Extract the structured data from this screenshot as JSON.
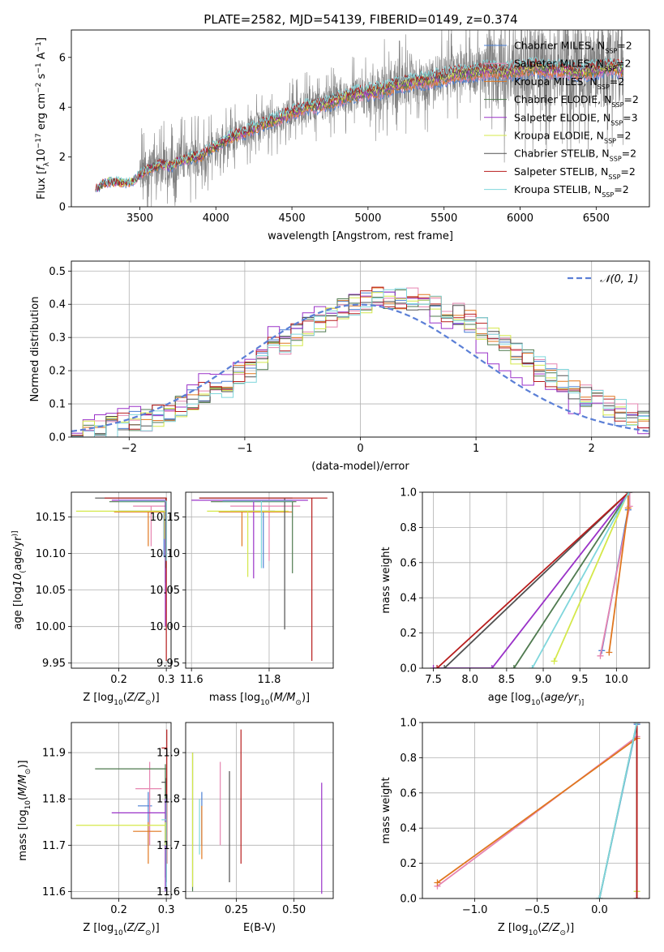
{
  "figure": {
    "title": "PLATE=2582, MJD=54139, FIBERID=0149, z=0.374"
  },
  "colors": {
    "data": "#808080",
    "gaussian": "#5b7fd6",
    "models": [
      "#4a7fd4",
      "#e684b0",
      "#e0771f",
      "#4f7a4f",
      "#9a32c8",
      "#d4e84a",
      "#505050",
      "#b81d1d",
      "#7fd6dc"
    ]
  },
  "legend_models": [
    {
      "name": "Chabrier MILES",
      "nssp": "2",
      "color": "#4a7fd4"
    },
    {
      "name": "Salpeter MILES",
      "nssp": "2",
      "color": "#e684b0"
    },
    {
      "name": "Kroupa MILES",
      "nssp": "2",
      "color": "#e0771f"
    },
    {
      "name": "Chabrier ELODIE",
      "nssp": "2",
      "color": "#4f7a4f"
    },
    {
      "name": "Salpeter ELODIE",
      "nssp": "3",
      "color": "#9a32c8"
    },
    {
      "name": "Kroupa ELODIE",
      "nssp": "2",
      "color": "#d4e84a"
    },
    {
      "name": "Chabrier STELIB",
      "nssp": "2",
      "color": "#505050"
    },
    {
      "name": "Salpeter STELIB",
      "nssp": "2",
      "color": "#b81d1d"
    },
    {
      "name": "Kroupa STELIB",
      "nssp": "2",
      "color": "#7fd6dc"
    }
  ],
  "chart_data": [
    {
      "id": "spectrum",
      "type": "line",
      "xlabel": "wavelength [Angstrom, rest frame]",
      "ylabel_parts": [
        "Flux [",
        "f",
        "λ",
        "10",
        "−17",
        " erg cm",
        "−2",
        " s",
        "−1",
        " A",
        "−1",
        "]"
      ],
      "xlim": [
        3050,
        6850
      ],
      "ylim": [
        0,
        7.1
      ],
      "xticks": [
        3500,
        4000,
        4500,
        5000,
        5500,
        6000,
        6500
      ],
      "yticks": [
        0,
        2,
        4,
        6
      ],
      "model_curve": {
        "x": [
          3210,
          3250,
          3300,
          3350,
          3400,
          3450,
          3500,
          3550,
          3600,
          3650,
          3700,
          3750,
          3800,
          3850,
          3900,
          3950,
          4000,
          4100,
          4200,
          4300,
          4400,
          4500,
          4600,
          4700,
          4800,
          4900,
          5000,
          5100,
          5200,
          5300,
          5400,
          5500,
          5600,
          5700,
          5800,
          5900,
          6000,
          6100,
          6200,
          6300,
          6400,
          6500,
          6600,
          6680
        ],
        "y": [
          0.7,
          0.9,
          1.0,
          1.0,
          0.95,
          1.0,
          1.3,
          1.5,
          1.6,
          1.7,
          1.6,
          1.8,
          1.9,
          2.0,
          2.0,
          2.3,
          2.4,
          2.8,
          3.0,
          3.3,
          3.5,
          3.8,
          4.0,
          4.1,
          4.3,
          4.5,
          4.6,
          4.7,
          4.9,
          5.0,
          5.1,
          5.2,
          5.35,
          5.4,
          5.5,
          5.4,
          5.5,
          5.6,
          5.5,
          5.5,
          5.4,
          5.5,
          5.6,
          5.5
        ]
      },
      "data_noise": {
        "seed": 7,
        "segments": [
          {
            "from": 3210,
            "to": 3500,
            "amp": 0.06
          },
          {
            "from": 3500,
            "to": 3950,
            "amp": 1.3
          },
          {
            "from": 3950,
            "to": 4500,
            "amp": 1.0
          },
          {
            "from": 4500,
            "to": 5000,
            "amp": 1.1
          },
          {
            "from": 5000,
            "to": 5800,
            "amp": 1.5
          },
          {
            "from": 5800,
            "to": 6680,
            "amp": 2.6
          }
        ]
      },
      "legend_position": "upper right"
    },
    {
      "id": "residuals",
      "type": "histogram",
      "xlabel": "(data-model)/error",
      "ylabel": "Normed distribution",
      "xlim": [
        -2.5,
        2.5
      ],
      "ylim": [
        0,
        0.53
      ],
      "xticks": [
        -2,
        -1,
        0,
        1,
        2
      ],
      "yticks": [
        0.0,
        0.1,
        0.2,
        0.3,
        0.4,
        0.5
      ],
      "bin_width": 0.1,
      "bin_start": -2.5,
      "reference_curve": {
        "name": "N(0,1)",
        "label": "𝒩(0, 1)",
        "mean": 0,
        "sigma": 1
      },
      "model_peak_shift": [
        0.25,
        0.35,
        0.3,
        0.3,
        0.1,
        0.3,
        0.3,
        0.25,
        0.35
      ],
      "legend_position": "upper right"
    },
    {
      "id": "age_vs_Z",
      "type": "scatter",
      "xlabel_parts": [
        "Z [log",
        "10",
        "(",
        "Z/Z",
        "⊙",
        ")]"
      ],
      "ylabel_parts": [
        "age  [log",
        "10",
        "(",
        "age/yr",
        ")]"
      ],
      "xlim": [
        0.1,
        0.31
      ],
      "ylim": [
        9.943,
        10.184
      ],
      "xticks": [
        0.2,
        0.3
      ],
      "yticks": [
        9.95,
        10.0,
        10.05,
        10.1,
        10.15
      ],
      "points": [
        {
          "x": 0.295,
          "y": 10.158,
          "xerr": [
            0.2,
            0.3
          ],
          "yerr": [
            10.095,
            10.158
          ],
          "color": "#4a7fd4"
        },
        {
          "x": 0.268,
          "y": 10.165,
          "xerr": [
            0.23,
            0.3
          ],
          "yerr": [
            10.11,
            10.165
          ],
          "color": "#e684b0"
        },
        {
          "x": 0.262,
          "y": 10.157,
          "xerr": [
            0.19,
            0.3
          ],
          "yerr": [
            10.11,
            10.157
          ],
          "color": "#e0771f"
        },
        {
          "x": 0.298,
          "y": 10.171,
          "xerr": [
            0.18,
            0.3
          ],
          "yerr": [
            10.06,
            10.171
          ],
          "color": "#4f7a4f"
        },
        {
          "x": 0.298,
          "y": 10.173,
          "xerr": [
            0.185,
            0.3
          ],
          "yerr": [
            10.0,
            10.173
          ],
          "color": "#9a32c8"
        },
        {
          "x": 0.296,
          "y": 10.158,
          "xerr": [
            0.11,
            0.3
          ],
          "yerr": [
            10.12,
            10.158
          ],
          "color": "#d4e84a"
        },
        {
          "x": 0.299,
          "y": 10.176,
          "xerr": [
            0.15,
            0.3
          ],
          "yerr": [
            10.08,
            10.176
          ],
          "color": "#505050"
        },
        {
          "x": 0.3,
          "y": 10.176,
          "xerr": [
            0.17,
            0.301
          ],
          "yerr": [
            9.953,
            10.176
          ],
          "color": "#b81d1d"
        },
        {
          "x": 0.3,
          "y": 10.172,
          "xerr": [
            0.2,
            0.3
          ],
          "yerr": [
            10.09,
            10.172
          ],
          "color": "#7fd6dc"
        }
      ]
    },
    {
      "id": "age_vs_mass",
      "type": "scatter",
      "xlabel_parts": [
        "mass [log",
        "10",
        "(",
        "M/M",
        "⊙",
        ")]"
      ],
      "xlim": [
        11.585,
        11.965
      ],
      "ylim": [
        9.943,
        10.184
      ],
      "xticks": [
        11.6,
        11.8
      ],
      "yticks": [
        9.95,
        10.0,
        10.05,
        10.1,
        10.15
      ],
      "points": [
        {
          "x": 11.785,
          "y": 10.158,
          "xerr": [
            11.7,
            11.815
          ],
          "yerr": [
            10.08,
            10.158
          ],
          "color": "#4a7fd4"
        },
        {
          "x": 11.8,
          "y": 10.165,
          "xerr": [
            11.7,
            11.88
          ],
          "yerr": [
            10.09,
            10.165
          ],
          "color": "#e684b0"
        },
        {
          "x": 11.73,
          "y": 10.157,
          "xerr": [
            11.67,
            11.86
          ],
          "yerr": [
            10.11,
            10.157
          ],
          "color": "#e0771f"
        },
        {
          "x": 11.86,
          "y": 10.171,
          "xerr": [
            11.65,
            11.87
          ],
          "yerr": [
            10.073,
            10.171
          ],
          "color": "#4f7a4f"
        },
        {
          "x": 11.76,
          "y": 10.173,
          "xerr": [
            11.6,
            11.9
          ],
          "yerr": [
            10.066,
            10.173
          ],
          "color": "#9a32c8"
        },
        {
          "x": 11.745,
          "y": 10.158,
          "xerr": [
            11.64,
            11.85
          ],
          "yerr": [
            10.068,
            10.158
          ],
          "color": "#d4e84a"
        },
        {
          "x": 11.84,
          "y": 10.176,
          "xerr": [
            11.62,
            11.86
          ],
          "yerr": [
            9.996,
            10.176
          ],
          "color": "#505050"
        },
        {
          "x": 11.91,
          "y": 10.176,
          "xerr": [
            11.62,
            11.95
          ],
          "yerr": [
            9.953,
            10.176
          ],
          "color": "#b81d1d"
        },
        {
          "x": 11.78,
          "y": 10.172,
          "xerr": [
            11.68,
            11.86
          ],
          "yerr": [
            10.08,
            10.172
          ],
          "color": "#7fd6dc"
        }
      ]
    },
    {
      "id": "cum_age",
      "type": "line",
      "xlabel_parts": [
        "age  [log",
        "10",
        "(",
        "age/yr",
        ")]"
      ],
      "ylabel": "mass weight",
      "xlim": [
        7.35,
        10.45
      ],
      "ylim": [
        0,
        1.0
      ],
      "xticks": [
        7.5,
        8.0,
        8.5,
        9.0,
        9.5,
        10.0
      ],
      "yticks": [
        0.0,
        0.2,
        0.4,
        0.6,
        0.8,
        1.0
      ],
      "series": [
        {
          "x": [
            9.8,
            10.16,
            10.16
          ],
          "y": [
            0.1,
            0.9,
            1.0
          ],
          "color": "#4a7fd4"
        },
        {
          "x": [
            9.78,
            10.18,
            10.18
          ],
          "y": [
            0.07,
            0.92,
            1.0
          ],
          "color": "#e684b0"
        },
        {
          "x": [
            9.9,
            10.16,
            10.16
          ],
          "y": [
            0.09,
            0.91,
            1.0
          ],
          "color": "#e0771f"
        },
        {
          "x": [
            8.6,
            10.17
          ],
          "y": [
            0.0,
            1.0
          ],
          "color": "#4f7a4f"
        },
        {
          "x": [
            7.5,
            8.3,
            10.17
          ],
          "y": [
            0.0,
            0.0,
            1.0
          ],
          "color": "#9a32c8"
        },
        {
          "x": [
            9.15,
            10.16
          ],
          "y": [
            0.04,
            1.0
          ],
          "color": "#d4e84a"
        },
        {
          "x": [
            7.65,
            10.17
          ],
          "y": [
            0.0,
            1.0
          ],
          "color": "#505050"
        },
        {
          "x": [
            7.55,
            10.17
          ],
          "y": [
            0.0,
            1.0
          ],
          "color": "#b81d1d"
        },
        {
          "x": [
            8.85,
            10.17
          ],
          "y": [
            0.0,
            1.0
          ],
          "color": "#7fd6dc"
        }
      ]
    },
    {
      "id": "mass_vs_Z",
      "type": "scatter",
      "xlabel_parts": [
        "Z [log",
        "10",
        "(",
        "Z/Z",
        "⊙",
        ")]"
      ],
      "ylabel_parts": [
        "mass [log",
        "10",
        "(",
        "M/M",
        "⊙",
        ")]"
      ],
      "xlim": [
        0.1,
        0.31
      ],
      "ylim": [
        11.585,
        11.965
      ],
      "xticks": [
        0.2,
        0.3
      ],
      "yticks": [
        11.6,
        11.7,
        11.8,
        11.9
      ],
      "points": [
        {
          "x": 0.262,
          "y": 11.785,
          "xerr": [
            0.24,
            0.27
          ],
          "yerr": [
            11.7,
            11.815
          ],
          "color": "#4a7fd4"
        },
        {
          "x": 0.265,
          "y": 11.822,
          "xerr": [
            0.235,
            0.29
          ],
          "yerr": [
            11.7,
            11.88
          ],
          "color": "#e684b0"
        },
        {
          "x": 0.262,
          "y": 11.73,
          "xerr": [
            0.23,
            0.29
          ],
          "yerr": [
            11.66,
            11.75
          ],
          "color": "#e0771f"
        },
        {
          "x": 0.298,
          "y": 11.865,
          "xerr": [
            0.15,
            0.3
          ],
          "yerr": [
            11.63,
            11.875
          ],
          "color": "#4f7a4f"
        },
        {
          "x": 0.298,
          "y": 11.77,
          "xerr": [
            0.185,
            0.3
          ],
          "yerr": [
            11.6,
            11.8
          ],
          "color": "#9a32c8"
        },
        {
          "x": 0.298,
          "y": 11.743,
          "xerr": [
            0.11,
            0.3
          ],
          "yerr": [
            11.7,
            11.75
          ],
          "color": "#d4e84a"
        },
        {
          "x": 0.3,
          "y": 11.836,
          "xerr": [
            0.29,
            0.3
          ],
          "yerr": [
            11.62,
            11.845
          ],
          "color": "#505050"
        },
        {
          "x": 0.301,
          "y": 11.91,
          "xerr": [
            0.29,
            0.301
          ],
          "yerr": [
            11.66,
            11.95
          ],
          "color": "#b81d1d"
        },
        {
          "x": 0.3,
          "y": 11.755,
          "xerr": [
            0.29,
            0.3
          ],
          "yerr": [
            11.6,
            11.8
          ],
          "color": "#7fd6dc"
        }
      ]
    },
    {
      "id": "mass_vs_EBV",
      "type": "scatter",
      "xlabel": "E(B-V)",
      "xlim": [
        0.03,
        0.67
      ],
      "ylim": [
        11.585,
        11.965
      ],
      "xticks": [
        0.25,
        0.5
      ],
      "yticks": [
        11.6,
        11.7,
        11.8,
        11.9
      ],
      "points": [
        {
          "x": 0.1,
          "y": 11.785,
          "yerr": [
            11.7,
            11.815
          ],
          "color": "#4a7fd4"
        },
        {
          "x": 0.18,
          "y": 11.8,
          "yerr": [
            11.7,
            11.88
          ],
          "color": "#e684b0"
        },
        {
          "x": 0.1,
          "y": 11.73,
          "yerr": [
            11.67,
            11.785
          ],
          "color": "#e0771f"
        },
        {
          "x": 0.06,
          "y": 11.86,
          "yerr": [
            11.6,
            11.9
          ],
          "color": "#4f7a4f"
        },
        {
          "x": 0.62,
          "y": 11.77,
          "yerr": [
            11.595,
            11.835
          ],
          "color": "#9a32c8"
        },
        {
          "x": 0.06,
          "y": 11.745,
          "yerr": [
            11.61,
            11.9
          ],
          "color": "#d4e84a"
        },
        {
          "x": 0.22,
          "y": 11.84,
          "yerr": [
            11.62,
            11.86
          ],
          "color": "#505050"
        },
        {
          "x": 0.27,
          "y": 11.91,
          "yerr": [
            11.66,
            11.95
          ],
          "color": "#b81d1d"
        },
        {
          "x": 0.09,
          "y": 11.75,
          "yerr": [
            11.68,
            11.8
          ],
          "color": "#7fd6dc"
        }
      ]
    },
    {
      "id": "cum_Z",
      "type": "line",
      "xlabel_parts": [
        "Z [log",
        "10",
        "(",
        "Z/Z",
        "⊙",
        ")]"
      ],
      "ylabel": "mass weight",
      "xlim": [
        -1.42,
        0.4
      ],
      "ylim": [
        0,
        1.0
      ],
      "xticks": [
        -1.0,
        -0.5,
        0.0
      ],
      "yticks": [
        0.0,
        0.2,
        0.4,
        0.6,
        0.8,
        1.0
      ],
      "series": [
        {
          "x": [
            0.0,
            0.3,
            0.3
          ],
          "y": [
            0.0,
            0.99,
            1.0
          ],
          "color": "#4a7fd4"
        },
        {
          "x": [
            -1.3,
            0.3,
            0.3
          ],
          "y": [
            0.07,
            0.92,
            1.0
          ],
          "color": "#e684b0"
        },
        {
          "x": [
            -1.3,
            0.3,
            0.3
          ],
          "y": [
            0.09,
            0.91,
            1.0
          ],
          "color": "#e0771f"
        },
        {
          "x": [
            0.0,
            0.3
          ],
          "y": [
            0.0,
            1.0
          ],
          "color": "#4f7a4f"
        },
        {
          "x": [
            0.3,
            0.3
          ],
          "y": [
            0.0,
            1.0
          ],
          "color": "#9a32c8"
        },
        {
          "x": [
            0.3,
            0.3
          ],
          "y": [
            0.04,
            1.0
          ],
          "color": "#d4e84a"
        },
        {
          "x": [
            0.3,
            0.3
          ],
          "y": [
            0.0,
            1.0
          ],
          "color": "#505050"
        },
        {
          "x": [
            0.3,
            0.3
          ],
          "y": [
            0.0,
            1.0
          ],
          "color": "#b81d1d"
        },
        {
          "x": [
            0.0,
            0.3
          ],
          "y": [
            0.0,
            1.0
          ],
          "color": "#7fd6dc"
        }
      ]
    }
  ]
}
